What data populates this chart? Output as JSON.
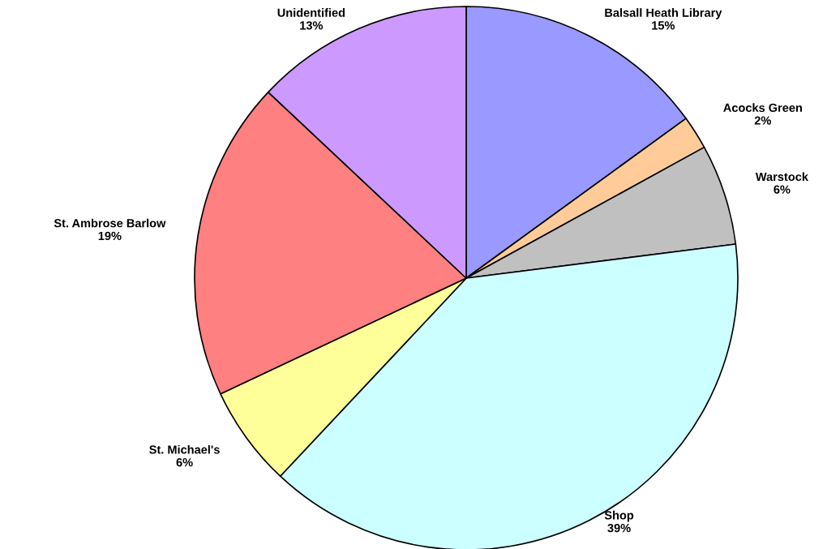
{
  "chart_data": {
    "type": "pie",
    "categories": [
      "Balsall Heath Library",
      "Acocks Green",
      "Warstock",
      "Shop",
      "St. Michael's",
      "St. Ambrose Barlow",
      "Unidentified"
    ],
    "values": [
      15,
      2,
      6,
      39,
      6,
      19,
      13
    ],
    "colors": [
      "#9999ff",
      "#ffcc99",
      "#c0c0c0",
      "#ccffff",
      "#ffff99",
      "#ff8080",
      "#cc99ff"
    ],
    "value_labels": [
      "15%",
      "2%",
      "6%",
      "39%",
      "6%",
      "19%",
      "13%"
    ],
    "legend": false
  }
}
